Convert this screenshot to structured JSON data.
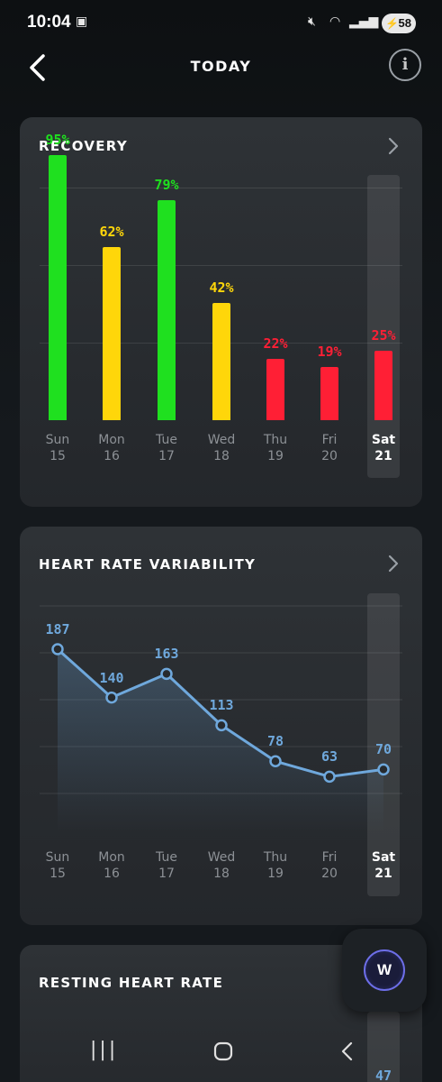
{
  "status_bar": {
    "time": "10:04",
    "battery": "58"
  },
  "header": {
    "title": "TODAY"
  },
  "recovery": {
    "title": "RECOVERY",
    "days": [
      {
        "day": "Sun",
        "date": "15",
        "label": "95%",
        "value": 95,
        "color": "#1fe01f"
      },
      {
        "day": "Mon",
        "date": "16",
        "label": "62%",
        "value": 62,
        "color": "#ffd60a"
      },
      {
        "day": "Tue",
        "date": "17",
        "label": "79%",
        "value": 79,
        "color": "#1fe01f"
      },
      {
        "day": "Wed",
        "date": "18",
        "label": "42%",
        "value": 42,
        "color": "#ffd60a"
      },
      {
        "day": "Thu",
        "date": "19",
        "label": "22%",
        "value": 22,
        "color": "#ff1f35"
      },
      {
        "day": "Fri",
        "date": "20",
        "label": "19%",
        "value": 19,
        "color": "#ff1f35"
      },
      {
        "day": "Sat",
        "date": "21",
        "label": "25%",
        "value": 25,
        "color": "#ff1f35"
      }
    ]
  },
  "hrv": {
    "title": "HEART RATE VARIABILITY",
    "line_color": "#6fa8dc",
    "days": [
      {
        "day": "Sun",
        "date": "15",
        "value": 187
      },
      {
        "day": "Mon",
        "date": "16",
        "value": 140
      },
      {
        "day": "Tue",
        "date": "17",
        "value": 163
      },
      {
        "day": "Wed",
        "date": "18",
        "value": 113
      },
      {
        "day": "Thu",
        "date": "19",
        "value": 78
      },
      {
        "day": "Fri",
        "date": "20",
        "value": 63
      },
      {
        "day": "Sat",
        "date": "21",
        "value": 70
      }
    ]
  },
  "rhr": {
    "title": "RESTING HEART RATE",
    "partial_value": "47"
  },
  "fab": {
    "logo": "W"
  }
}
